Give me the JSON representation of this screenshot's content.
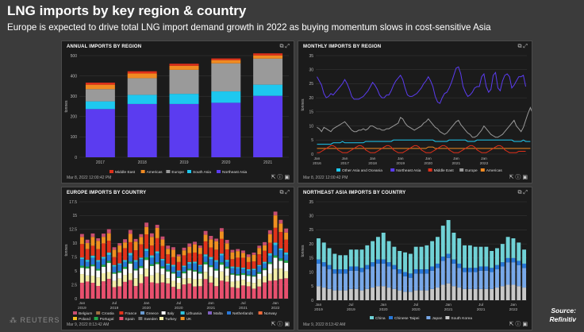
{
  "header": {
    "title": "LNG imports by key region & country",
    "subtitle": "Europe is expected to drive total LNG import demand growth in 2022 as buying momentum slows in cost-sensitive Asia"
  },
  "footer": {
    "reuters": "REUTERS",
    "source_line1": "Source:",
    "source_line2": "Refinitiv"
  },
  "icons": {
    "panel_tools": [
      "copy-icon",
      "expand-icon"
    ],
    "panel_actions": [
      "export-icon",
      "info-icon",
      "image-icon"
    ]
  },
  "chart_data": [
    {
      "id": "annual",
      "type": "bar",
      "stacked": true,
      "title": "ANNUAL IMPORTS BY REGION",
      "timestamp": "Mar 8, 2022 12:00:42 PM",
      "ylabel": "tonnes",
      "ylim": [
        0,
        500
      ],
      "yticks": [
        0,
        100,
        200,
        300,
        400,
        500
      ],
      "categories": [
        "2017",
        "2018",
        "2019",
        "2020",
        "2021"
      ],
      "series": [
        {
          "name": "Northeast Asia",
          "color": "#5b3cf0",
          "values": [
            237,
            262,
            262,
            268,
            302
          ]
        },
        {
          "name": "South Asia",
          "color": "#1ec8ef",
          "values": [
            38,
            45,
            50,
            56,
            55
          ]
        },
        {
          "name": "Europe",
          "color": "#9a9a9a",
          "values": [
            60,
            82,
            118,
            138,
            128
          ]
        },
        {
          "name": "Americas",
          "color": "#f08a22",
          "values": [
            22,
            23,
            20,
            16,
            16
          ]
        },
        {
          "name": "Middle East",
          "color": "#e0301a",
          "values": [
            10,
            11,
            10,
            8,
            10
          ]
        }
      ],
      "legend_position": "bottom",
      "legend": [
        "Middle East",
        "Americas",
        "Europe",
        "South Asia",
        "Northeast Asia"
      ]
    },
    {
      "id": "monthly",
      "type": "line",
      "title": "MONTHLY IMPORTS BY REGION",
      "timestamp": "Mar 8, 2022 12:00:42 PM",
      "ylabel": "tonnes",
      "ylim": [
        0,
        35
      ],
      "yticks": [
        0,
        5,
        10,
        15,
        20,
        25,
        30,
        35
      ],
      "x_start": "2016-01",
      "xtick_labels": [
        [
          "Jan",
          "2016"
        ],
        [
          "Jan",
          "2017"
        ],
        [
          "Jan",
          "2018"
        ],
        [
          "Jan",
          "2019"
        ],
        [
          "Jan",
          "2020"
        ],
        [
          "Jan",
          "2021"
        ],
        [
          "Jan",
          "2022"
        ]
      ],
      "series": [
        {
          "name": "Northeast Asia",
          "color": "#5b3cf0",
          "values": [
            27.5,
            26,
            24.5,
            21.5,
            20,
            20.5,
            21.5,
            21,
            22,
            23,
            24,
            25,
            26.5,
            25,
            23,
            20.5,
            19.5,
            19.5,
            19.5,
            20,
            20.5,
            21.5,
            22.5,
            24,
            25.5,
            24.5,
            23,
            21,
            20,
            20,
            21,
            21,
            22.5,
            24.5,
            26,
            27,
            28,
            26.5,
            23.5,
            21,
            20.5,
            20.5,
            21,
            21.5,
            22.5,
            23.5,
            25,
            26,
            27.5,
            26,
            24,
            20.5,
            18.5,
            18,
            20,
            21.5,
            22,
            23.5,
            25.5,
            28,
            30.5,
            31,
            28.5,
            24,
            22,
            20.5,
            21,
            22,
            23.5,
            24,
            24,
            27.5,
            28.5,
            24,
            22,
            23,
            28,
            29,
            23.5,
            22.5,
            26,
            28,
            28.5,
            27.5,
            23.5,
            24.5,
            26,
            27.5,
            27.5,
            28,
            24
          ]
        },
        {
          "name": "Europe",
          "color": "#999999",
          "values": [
            9.5,
            9,
            8,
            9.5,
            9,
            8.5,
            8,
            9,
            9.5,
            10,
            10.5,
            11,
            11.5,
            10.5,
            9.5,
            8.5,
            8,
            8,
            8.5,
            8.5,
            9,
            8.5,
            9,
            10,
            10,
            9.5,
            9,
            9,
            8.5,
            8.5,
            9,
            9,
            9.5,
            10,
            10.5,
            11,
            13,
            12.5,
            11,
            10,
            9.5,
            9,
            8.5,
            9,
            9.5,
            10,
            11,
            11.5,
            12.5,
            11.5,
            10.5,
            9.5,
            9,
            8,
            7.5,
            7,
            7.5,
            8.5,
            9.5,
            10.5,
            11.5,
            12,
            10.5,
            9.5,
            8.5,
            7.5,
            7,
            6,
            6,
            6.5,
            7.5,
            8.5,
            10,
            9,
            8,
            7,
            6.5,
            6,
            6,
            6.5,
            7,
            8,
            9,
            10,
            11,
            12,
            10,
            9,
            8,
            9.5,
            12,
            14.5,
            16.5,
            14.5
          ]
        },
        {
          "name": "Other Asia and Oceania",
          "color": "#1ec8ef",
          "values": [
            3.5,
            3.5,
            3.5,
            3.5,
            3.5,
            3.5,
            3.5,
            4,
            4,
            4,
            4,
            4.5,
            4,
            4,
            4,
            4,
            4,
            4,
            4,
            4,
            4,
            4.5,
            4.5,
            4.5,
            4.5,
            4.5,
            4.5,
            4.5,
            4.5,
            4.5,
            4.5,
            4.5,
            4.5,
            5,
            5,
            5,
            5,
            5,
            5,
            5,
            5,
            5,
            5,
            5,
            5,
            5,
            5,
            5,
            5,
            5,
            5,
            4.5,
            4.5,
            4.5,
            4.5,
            4.5,
            4.5,
            5,
            5,
            5,
            5,
            5,
            5,
            5,
            5,
            4.5,
            4.5,
            4.5,
            4.5,
            5,
            5,
            5,
            5,
            5,
            5,
            5,
            5,
            5,
            5,
            5,
            5,
            5,
            5,
            5,
            5,
            4.5,
            4.5,
            4.5,
            4.5,
            5,
            4.5,
            4.5,
            4.5
          ]
        },
        {
          "name": "Americas",
          "color": "#f08a22",
          "values": [
            2,
            2,
            2,
            2,
            2,
            2,
            2,
            2,
            2,
            2,
            2,
            2,
            2,
            2,
            2,
            2,
            2,
            2,
            2,
            2,
            2,
            2,
            2,
            2,
            2,
            2,
            2,
            2,
            2,
            2,
            2,
            2,
            2,
            2,
            2,
            2,
            2,
            2,
            2,
            2,
            2,
            2,
            2,
            2,
            2,
            2,
            2,
            2,
            2.5,
            2.5,
            2.5,
            2,
            2,
            2,
            2,
            2,
            2,
            2,
            2,
            2,
            2,
            2,
            2,
            2,
            2,
            2,
            2,
            2,
            2,
            2,
            2,
            2,
            2,
            2,
            2,
            2,
            2,
            2,
            2,
            2,
            2,
            2,
            2,
            2,
            2,
            2,
            2,
            2,
            2,
            2,
            2,
            2,
            2
          ]
        },
        {
          "name": "Middle East",
          "color": "#e0301a",
          "values": [
            0.5,
            0.5,
            1,
            1.5,
            2,
            2.5,
            3,
            3,
            2.5,
            1.5,
            1,
            0.5,
            0.5,
            0.5,
            1,
            1.5,
            2,
            2.5,
            3,
            3,
            2.5,
            1.5,
            1,
            0.5,
            0.5,
            0.5,
            1,
            1.5,
            2,
            2.5,
            3,
            3,
            2.5,
            1.5,
            1,
            0.5,
            0.5,
            0.5,
            1,
            1.5,
            2,
            2.5,
            3,
            3,
            2.5,
            1.5,
            1,
            0.5,
            0.5,
            0.5,
            1,
            1.5,
            2,
            2.5,
            3,
            3,
            2.5,
            1.5,
            1,
            0.5,
            0.5,
            0.5,
            1,
            1.5,
            2,
            2.5,
            3,
            3,
            2.5,
            1.5,
            1,
            0.5,
            0.5,
            0.5,
            1,
            1.5,
            2,
            2.5,
            3,
            3,
            2.5,
            1.5,
            1,
            0.5,
            0.5,
            0.5,
            0.5,
            1,
            1,
            1,
            1
          ]
        }
      ],
      "legend_position": "bottom",
      "legend": [
        "Other Asia and Oceania",
        "Northeast Asia",
        "Middle East",
        "Europe",
        "Americas"
      ]
    },
    {
      "id": "europe",
      "type": "bar",
      "stacked": true,
      "title": "EUROPE IMPORTS BY COUNTRY",
      "timestamp": "Mar 9, 2022 8:13:42 AM",
      "ylabel": "tonnes",
      "ylim": [
        0,
        17.5
      ],
      "yticks": [
        0,
        2.5,
        5,
        7.5,
        10,
        12.5,
        15,
        17.5
      ],
      "x_start": "2019-01",
      "xtick_labels": [
        [
          "Jan",
          "2019"
        ],
        [
          "Jul",
          "2019"
        ],
        [
          "Jan",
          "2020"
        ],
        [
          "Jul",
          "2020"
        ],
        [
          "Jan",
          "2021"
        ],
        [
          "Jul",
          "2021"
        ],
        [
          "Jan",
          "2022"
        ]
      ],
      "totals": [
        11.5,
        10.5,
        12,
        11,
        11.5,
        12.5,
        9.5,
        10,
        10.5,
        12.5,
        11,
        11.5,
        13.5,
        12,
        13.5,
        11,
        9.5,
        9.5,
        8,
        9,
        10,
        10.5,
        9.5,
        12,
        11.5,
        11,
        12.5,
        10.5,
        9,
        9,
        8.5,
        8,
        8.5,
        9.5,
        10,
        12.5,
        16,
        14,
        12.5
      ],
      "series": [
        {
          "name": "Spain",
          "color": "#e8506e",
          "share": 0.25
        },
        {
          "name": "Turkey",
          "color": "#f4efa8",
          "share": 0.12
        },
        {
          "name": "Italy",
          "color": "#ffffff",
          "share": 0.12
        },
        {
          "name": "Portugal",
          "color": "#22a84a",
          "share": 0.03
        },
        {
          "name": "Netherlands",
          "color": "#2878d8",
          "share": 0.1
        },
        {
          "name": "Lithuania",
          "color": "#2ec4e0",
          "share": 0.03
        },
        {
          "name": "France",
          "color": "#e2321a",
          "share": 0.18
        },
        {
          "name": "UK",
          "color": "#f09020",
          "share": 0.12
        },
        {
          "name": "Belgium",
          "color": "#c84e70",
          "share": 0.05
        }
      ],
      "legend_position": "bottom",
      "legend": [
        "Belgium",
        "Croatia",
        "France",
        "Greece",
        "Italy",
        "Lithuania",
        "Malta",
        "Netherlands",
        "Norway",
        "Poland",
        "Portugal",
        "Spain",
        "Sweden",
        "Turkey",
        "UK"
      ],
      "legend_colors": [
        "#c84e70",
        "#a07040",
        "#e2321a",
        "#6a9ad0",
        "#ffffff",
        "#2ec4e0",
        "#8060c0",
        "#2878d8",
        "#f06a3a",
        "#f4c020",
        "#22a84a",
        "#e8506e",
        "#707070",
        "#f4efa8",
        "#f09020"
      ]
    },
    {
      "id": "neasia",
      "type": "bar",
      "stacked": true,
      "title": "NORTHEAST ASIA IMPORTS BY COUNTRY",
      "timestamp": "Mar 9, 2022 8:13:42 AM",
      "ylabel": "tonnes",
      "ylim": [
        0,
        35
      ],
      "yticks": [
        0,
        5,
        10,
        15,
        20,
        25,
        30,
        35
      ],
      "x_start": "2019-01",
      "xtick_labels": [
        [
          "Jan",
          "2019"
        ],
        [
          "Jul",
          "2019"
        ],
        [
          "Jan",
          "2020"
        ],
        [
          "Jul",
          "2020"
        ],
        [
          "Jan",
          "2021"
        ],
        [
          "Jul",
          "2021"
        ],
        [
          "Jan",
          "2022"
        ]
      ],
      "series": [
        {
          "name": "South Korea",
          "color": "#c8c8c8",
          "values": [
            5,
            4.5,
            4,
            3.5,
            3.5,
            3.5,
            4,
            4,
            3.5,
            4,
            4.5,
            5,
            5,
            4.5,
            4,
            3.5,
            3,
            3,
            3.5,
            3.5,
            3.5,
            4,
            4.5,
            5.5,
            6,
            5,
            4.5,
            4,
            4,
            4,
            4,
            4,
            4,
            4.5,
            5,
            5.5,
            5.5,
            5,
            4.5
          ]
        },
        {
          "name": "Japan",
          "color": "#78a8e8",
          "values": [
            8,
            7.5,
            7,
            6,
            6,
            6,
            6.5,
            6.5,
            6.5,
            7,
            7.5,
            8,
            8,
            7.5,
            7,
            6,
            5.5,
            5,
            6,
            6,
            6,
            6.5,
            7,
            8.5,
            9,
            8,
            7,
            6,
            6,
            6,
            6.5,
            6.5,
            6,
            6.5,
            7,
            8,
            8,
            7.5,
            7
          ]
        },
        {
          "name": "Chinese Taipei",
          "color": "#2878d8",
          "values": [
            1.5,
            1.5,
            1.5,
            1.5,
            1.5,
            1.5,
            1.5,
            1.5,
            1.5,
            1.5,
            1.5,
            1.5,
            1.5,
            1.5,
            1.5,
            1.5,
            1.5,
            1.5,
            1.5,
            1.5,
            1.5,
            1.5,
            1.5,
            1.5,
            1.5,
            1.5,
            1.5,
            1.5,
            1.5,
            1.5,
            1.5,
            1.5,
            1.5,
            1.5,
            1.5,
            1.5,
            1.5,
            1.5,
            1.5
          ]
        },
        {
          "name": "China",
          "color": "#70d2d6",
          "values": [
            7.5,
            7,
            6,
            5.5,
            5,
            5,
            6,
            6,
            6.5,
            7,
            7.5,
            8,
            9.5,
            7.5,
            6.5,
            6.5,
            7,
            7,
            8,
            8,
            8.5,
            9,
            9.5,
            11,
            12,
            9.5,
            9,
            8,
            8,
            7.5,
            7,
            7,
            6,
            6,
            6.5,
            7.5,
            7,
            6.5,
            5
          ]
        }
      ],
      "legend_position": "bottom",
      "legend": [
        "China",
        "Chinese Taipei",
        "Japan",
        "South Korea"
      ]
    }
  ]
}
